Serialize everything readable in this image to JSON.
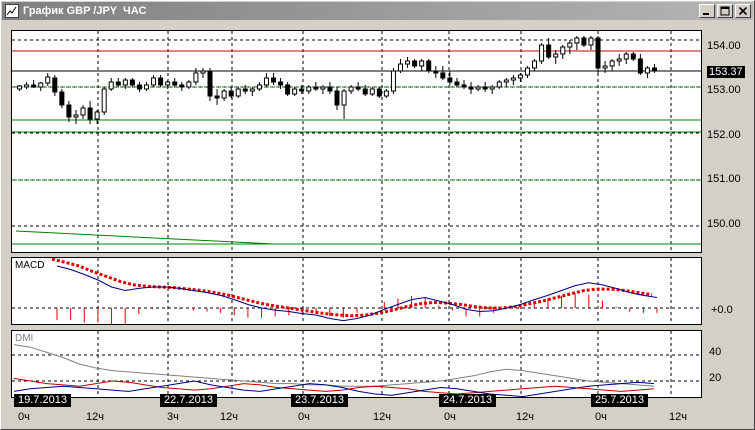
{
  "window": {
    "title": "График GBP /JPY  ЧАС",
    "buttons": [
      "minimize",
      "maximize",
      "close"
    ]
  },
  "colors": {
    "bull_candle": "#000000",
    "bear_candle": "#000000",
    "grid": "#000000",
    "support_lines": "#008000",
    "resistance_line": "#c00000",
    "macd_line": "#000080",
    "macd_signal": "#e00000",
    "dmi_adx": "#808080",
    "dmi_plus": "#000080",
    "dmi_minus": "#c00000"
  },
  "price_panel": {
    "current_price": "153.37",
    "y_ticks": [
      "154.00",
      "153.00",
      "152.00",
      "151.00",
      "150.00"
    ]
  },
  "macd_panel": {
    "label": "MACD",
    "zero_tick": "+0.0"
  },
  "dmi_panel": {
    "label": "DMI",
    "y_ticks": [
      "40",
      "20"
    ]
  },
  "time_axis": {
    "dates": [
      "19.7.2013",
      "22.7.2013",
      "23.7.2013",
      "24.7.2013",
      "25.7.2013"
    ],
    "hours": [
      "0ч",
      "12ч",
      "3ч",
      "12ч",
      "0ч",
      "12ч",
      "0ч",
      "12ч",
      "0ч",
      "12ч"
    ]
  },
  "chart_data": {
    "type": "candlestick",
    "title": "График GBP /JPY  ЧАС",
    "ylim": [
      149.5,
      154.2
    ],
    "candles": [
      [
        152.95,
        153.05,
        152.9,
        153.02
      ],
      [
        153.0,
        153.1,
        152.95,
        153.05
      ],
      [
        153.05,
        153.15,
        152.98,
        153.0
      ],
      [
        153.0,
        153.1,
        152.9,
        153.08
      ],
      [
        153.08,
        153.3,
        153.02,
        153.22
      ],
      [
        153.2,
        153.25,
        152.8,
        152.88
      ],
      [
        152.88,
        152.95,
        152.55,
        152.6
      ],
      [
        152.6,
        152.7,
        152.25,
        152.35
      ],
      [
        152.35,
        152.5,
        152.2,
        152.4
      ],
      [
        152.4,
        152.6,
        152.3,
        152.55
      ],
      [
        152.55,
        152.7,
        152.2,
        152.3
      ],
      [
        152.3,
        152.5,
        152.2,
        152.45
      ],
      [
        152.45,
        153.0,
        152.4,
        152.95
      ],
      [
        152.95,
        153.2,
        152.9,
        153.1
      ],
      [
        153.1,
        153.2,
        153.0,
        153.05
      ],
      [
        153.05,
        153.2,
        152.95,
        153.15
      ],
      [
        153.15,
        153.2,
        153.0,
        153.05
      ],
      [
        153.05,
        153.1,
        152.88,
        152.95
      ],
      [
        152.95,
        153.1,
        152.9,
        153.05
      ],
      [
        153.05,
        153.25,
        153.0,
        153.2
      ],
      [
        153.2,
        153.25,
        153.0,
        153.05
      ],
      [
        153.05,
        153.15,
        152.95,
        153.1
      ],
      [
        153.1,
        153.2,
        153.0,
        153.05
      ],
      [
        153.05,
        153.1,
        152.9,
        153.0
      ],
      [
        153.0,
        153.15,
        152.95,
        153.1
      ],
      [
        153.1,
        153.4,
        153.05,
        153.3
      ],
      [
        153.3,
        153.4,
        153.2,
        153.35
      ],
      [
        153.35,
        153.4,
        152.7,
        152.8
      ],
      [
        152.8,
        152.95,
        152.6,
        152.75
      ],
      [
        152.75,
        152.95,
        152.7,
        152.9
      ],
      [
        152.9,
        153.0,
        152.75,
        152.8
      ],
      [
        152.8,
        153.0,
        152.75,
        152.95
      ],
      [
        152.95,
        153.05,
        152.85,
        152.9
      ],
      [
        152.9,
        153.0,
        152.8,
        152.95
      ],
      [
        152.95,
        153.1,
        152.9,
        153.05
      ],
      [
        153.05,
        153.3,
        153.0,
        153.2
      ],
      [
        153.2,
        153.3,
        153.05,
        153.1
      ],
      [
        153.1,
        153.2,
        152.95,
        153.05
      ],
      [
        153.05,
        153.1,
        152.8,
        152.85
      ],
      [
        152.85,
        153.0,
        152.8,
        152.95
      ],
      [
        152.95,
        153.05,
        152.85,
        152.9
      ],
      [
        152.9,
        153.05,
        152.85,
        153.0
      ],
      [
        153.0,
        153.1,
        152.9,
        152.95
      ],
      [
        152.95,
        153.05,
        152.85,
        153.0
      ],
      [
        153.0,
        153.1,
        152.85,
        152.9
      ],
      [
        152.9,
        153.0,
        152.5,
        152.6
      ],
      [
        152.6,
        152.95,
        152.3,
        152.9
      ],
      [
        152.9,
        153.05,
        152.85,
        153.0
      ],
      [
        153.0,
        153.1,
        152.9,
        152.95
      ],
      [
        152.95,
        153.05,
        152.8,
        152.85
      ],
      [
        152.85,
        153.0,
        152.8,
        152.95
      ],
      [
        152.95,
        153.0,
        152.75,
        152.8
      ],
      [
        152.8,
        152.95,
        152.75,
        152.9
      ],
      [
        152.9,
        153.4,
        152.85,
        153.35
      ],
      [
        153.35,
        153.6,
        153.3,
        153.5
      ],
      [
        153.5,
        153.65,
        153.4,
        153.55
      ],
      [
        153.55,
        153.6,
        153.4,
        153.45
      ],
      [
        153.45,
        153.6,
        153.35,
        153.55
      ],
      [
        153.55,
        153.6,
        153.3,
        153.35
      ],
      [
        153.35,
        153.45,
        153.2,
        153.3
      ],
      [
        153.3,
        153.45,
        153.15,
        153.2
      ],
      [
        153.2,
        153.35,
        153.05,
        153.1
      ],
      [
        153.1,
        153.2,
        153.0,
        153.05
      ],
      [
        153.05,
        153.15,
        152.95,
        153.0
      ],
      [
        153.0,
        153.1,
        152.85,
        152.95
      ],
      [
        152.95,
        153.05,
        152.9,
        153.0
      ],
      [
        153.0,
        153.1,
        152.88,
        152.95
      ],
      [
        152.95,
        153.05,
        152.85,
        153.0
      ],
      [
        153.0,
        153.15,
        152.95,
        153.1
      ],
      [
        153.1,
        153.2,
        153.0,
        153.15
      ],
      [
        153.15,
        153.25,
        153.05,
        153.2
      ],
      [
        153.2,
        153.3,
        153.1,
        153.25
      ],
      [
        153.25,
        153.45,
        153.2,
        153.4
      ],
      [
        153.4,
        153.6,
        153.35,
        153.55
      ],
      [
        153.55,
        153.95,
        153.5,
        153.9
      ],
      [
        153.9,
        154.05,
        153.6,
        153.65
      ],
      [
        153.65,
        153.8,
        153.5,
        153.7
      ],
      [
        153.7,
        153.9,
        153.6,
        153.85
      ],
      [
        153.85,
        154.0,
        153.7,
        153.95
      ],
      [
        153.95,
        154.1,
        153.8,
        154.05
      ],
      [
        154.05,
        154.1,
        153.85,
        153.9
      ],
      [
        153.9,
        154.1,
        153.8,
        154.05
      ],
      [
        154.05,
        154.1,
        153.3,
        153.4
      ],
      [
        153.4,
        153.55,
        153.3,
        153.45
      ],
      [
        153.45,
        153.6,
        153.35,
        153.55
      ],
      [
        153.55,
        153.7,
        153.45,
        153.6
      ],
      [
        153.6,
        153.75,
        153.5,
        153.7
      ],
      [
        153.7,
        153.75,
        153.55,
        153.6
      ],
      [
        153.6,
        153.7,
        153.25,
        153.3
      ],
      [
        153.3,
        153.45,
        153.2,
        153.4
      ],
      [
        153.4,
        153.5,
        153.3,
        153.37
      ]
    ],
    "horizontal_lines": [
      {
        "value": 153.78,
        "color": "red"
      },
      {
        "value": 153.33,
        "color": "black"
      },
      {
        "value": 153.0,
        "color": "green",
        "dotted": true
      },
      {
        "value": 152.28,
        "color": "green"
      },
      {
        "value": 152.02,
        "color": "green"
      },
      {
        "value": 151.0,
        "color": "green",
        "dotted": true
      },
      {
        "value": 149.62,
        "color": "green"
      }
    ],
    "trendline": {
      "from": [
        0,
        149.9
      ],
      "to": [
        35,
        149.62
      ],
      "color": "green"
    },
    "macd": {
      "main": [
        0.6,
        0.55,
        0.48,
        0.4,
        0.3,
        0.25,
        0.28,
        0.3,
        0.3,
        0.28,
        0.25,
        0.22,
        0.18,
        0.12,
        0.05,
        0.0,
        -0.03,
        -0.05,
        -0.08,
        -0.1,
        -0.15,
        -0.18,
        -0.15,
        -0.1,
        -0.02,
        0.05,
        0.12,
        0.15,
        0.1,
        0.05,
        -0.02,
        -0.05,
        -0.04,
        0.0,
        0.05,
        0.12,
        0.18,
        0.25,
        0.32,
        0.36,
        0.33,
        0.28,
        0.22,
        0.18,
        0.15
      ],
      "signal": [
        0.7,
        0.65,
        0.6,
        0.52,
        0.45,
        0.38,
        0.33,
        0.31,
        0.3,
        0.29,
        0.27,
        0.25,
        0.22,
        0.18,
        0.13,
        0.08,
        0.04,
        0.01,
        -0.02,
        -0.05,
        -0.08,
        -0.1,
        -0.11,
        -0.1,
        -0.07,
        -0.03,
        0.02,
        0.06,
        0.08,
        0.07,
        0.05,
        0.02,
        0.0,
        0.0,
        0.02,
        0.06,
        0.1,
        0.15,
        0.2,
        0.25,
        0.27,
        0.27,
        0.25,
        0.22,
        0.19
      ]
    },
    "dmi": {
      "adx": [
        48,
        46,
        42,
        38,
        33,
        30,
        28,
        27,
        26,
        25,
        24,
        23,
        22,
        21,
        20,
        19,
        18,
        18,
        17,
        17,
        16,
        16,
        16,
        17,
        18,
        19,
        20,
        22,
        24,
        27,
        29,
        28,
        26,
        24,
        22,
        20,
        19,
        18,
        17,
        16
      ],
      "plus_di": [
        12,
        14,
        15,
        16,
        15,
        14,
        13,
        12,
        14,
        16,
        18,
        20,
        17,
        15,
        13,
        12,
        14,
        16,
        18,
        17,
        15,
        12,
        10,
        9,
        11,
        13,
        15,
        14,
        12,
        10,
        9,
        8,
        10,
        12,
        14,
        16,
        17,
        18,
        19,
        18
      ],
      "minus_di": [
        22,
        20,
        18,
        17,
        16,
        18,
        20,
        19,
        17,
        15,
        14,
        13,
        14,
        16,
        18,
        17,
        15,
        14,
        13,
        12,
        13,
        15,
        16,
        15,
        14,
        12,
        11,
        10,
        11,
        12,
        13,
        14,
        15,
        16,
        15,
        14,
        13,
        12,
        13,
        14
      ]
    },
    "ylabel": "",
    "xlabel": ""
  }
}
